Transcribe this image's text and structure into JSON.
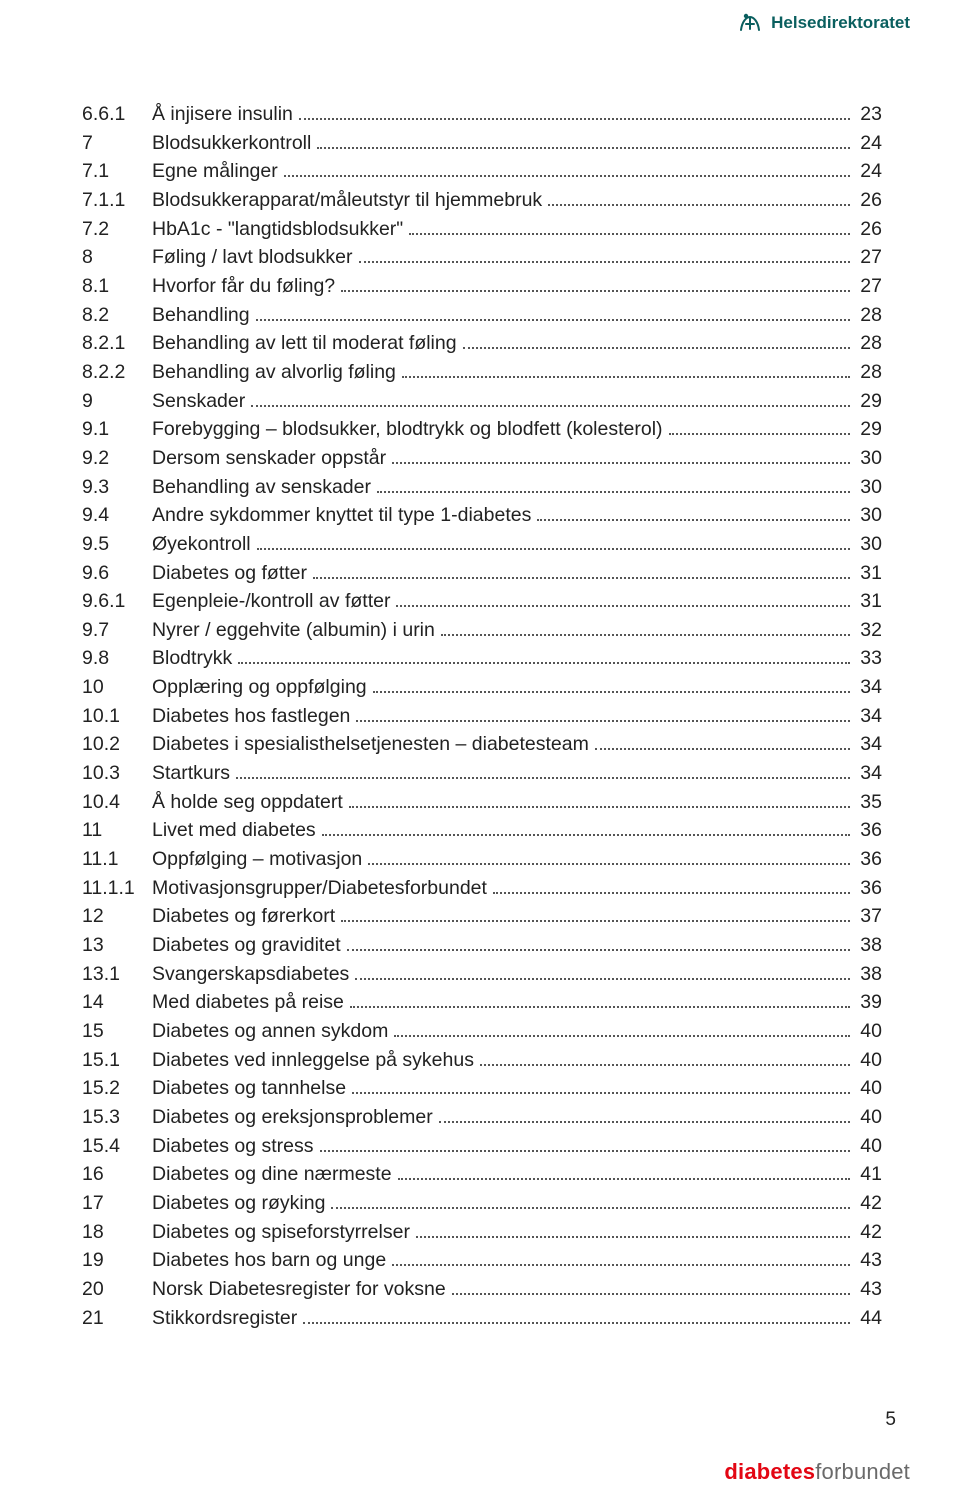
{
  "header": {
    "brand": "Helsedirektoratet"
  },
  "toc": {
    "entries": [
      {
        "num": "6.6.1",
        "title": "Å injisere insulin",
        "page": "23"
      },
      {
        "num": "7",
        "title": "Blodsukkerkontroll",
        "page": "24"
      },
      {
        "num": "7.1",
        "title": "Egne målinger",
        "page": "24"
      },
      {
        "num": "7.1.1",
        "title": "Blodsukkerapparat/måleutstyr til hjemmebruk",
        "page": "26"
      },
      {
        "num": "7.2",
        "title": "HbA1c - \"langtidsblodsukker\"",
        "page": "26"
      },
      {
        "num": "8",
        "title": "Føling / lavt blodsukker",
        "page": "27"
      },
      {
        "num": "8.1",
        "title": "Hvorfor får du føling?",
        "page": "27"
      },
      {
        "num": "8.2",
        "title": "Behandling",
        "page": "28"
      },
      {
        "num": "8.2.1",
        "title": "Behandling av lett til moderat føling",
        "page": "28"
      },
      {
        "num": "8.2.2",
        "title": "Behandling av alvorlig føling",
        "page": "28"
      },
      {
        "num": "9",
        "title": "Senskader",
        "page": "29"
      },
      {
        "num": "9.1",
        "title": "Forebygging – blodsukker, blodtrykk og blodfett (kolesterol)",
        "page": "29"
      },
      {
        "num": "9.2",
        "title": "Dersom senskader oppstår",
        "page": "30"
      },
      {
        "num": "9.3",
        "title": "Behandling av senskader",
        "page": "30"
      },
      {
        "num": "9.4",
        "title": "Andre sykdommer knyttet til type 1-diabetes",
        "page": "30"
      },
      {
        "num": "9.5",
        "title": "Øyekontroll",
        "page": "30"
      },
      {
        "num": "9.6",
        "title": "Diabetes og føtter",
        "page": "31"
      },
      {
        "num": "9.6.1",
        "title": "Egenpleie-/kontroll av føtter",
        "page": "31"
      },
      {
        "num": "9.7",
        "title": "Nyrer / eggehvite (albumin) i urin",
        "page": "32"
      },
      {
        "num": "9.8",
        "title": "Blodtrykk",
        "page": "33"
      },
      {
        "num": "10",
        "title": "Opplæring og oppfølging",
        "page": "34"
      },
      {
        "num": "10.1",
        "title": "Diabetes hos fastlegen",
        "page": "34"
      },
      {
        "num": "10.2",
        "title": "Diabetes i spesialisthelsetjenesten – diabetesteam",
        "page": "34"
      },
      {
        "num": "10.3",
        "title": "Startkurs",
        "page": "34"
      },
      {
        "num": "10.4",
        "title": "Å holde seg oppdatert",
        "page": "35"
      },
      {
        "num": "11",
        "title": "Livet med diabetes",
        "page": "36"
      },
      {
        "num": "11.1",
        "title": "Oppfølging – motivasjon",
        "page": "36"
      },
      {
        "num": "11.1.1",
        "title": "Motivasjonsgrupper/Diabetesforbundet",
        "page": "36"
      },
      {
        "num": "12",
        "title": "Diabetes og førerkort",
        "page": "37"
      },
      {
        "num": "13",
        "title": "Diabetes og graviditet",
        "page": "38"
      },
      {
        "num": "13.1",
        "title": "Svangerskapsdiabetes",
        "page": "38"
      },
      {
        "num": "14",
        "title": "Med diabetes på reise",
        "page": "39"
      },
      {
        "num": "15",
        "title": "Diabetes og annen sykdom",
        "page": "40"
      },
      {
        "num": "15.1",
        "title": "Diabetes ved innleggelse på sykehus",
        "page": "40"
      },
      {
        "num": "15.2",
        "title": "Diabetes og tannhelse",
        "page": "40"
      },
      {
        "num": "15.3",
        "title": "Diabetes og ereksjonsproblemer",
        "page": "40"
      },
      {
        "num": "15.4",
        "title": "Diabetes og stress",
        "page": "40"
      },
      {
        "num": "16",
        "title": "Diabetes og dine nærmeste",
        "page": "41"
      },
      {
        "num": "17",
        "title": "Diabetes og røyking",
        "page": "42"
      },
      {
        "num": "18",
        "title": "Diabetes og spiseforstyrrelser",
        "page": "42"
      },
      {
        "num": "19",
        "title": "Diabetes hos barn og unge",
        "page": "43"
      },
      {
        "num": "20",
        "title": "Norsk Diabetesregister for voksne",
        "page": "43"
      },
      {
        "num": "21",
        "title": "Stikkordsregister",
        "page": "44"
      }
    ]
  },
  "page_number": "5",
  "footer": {
    "word1": "diabetes",
    "word2": "forbundet"
  }
}
